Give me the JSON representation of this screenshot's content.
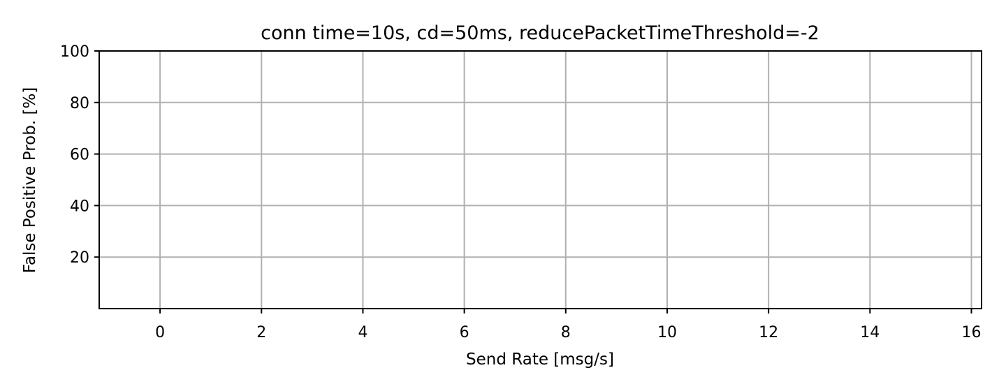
{
  "chart_data": {
    "type": "line",
    "title": "conn time=10s, cd=50ms, reducePacketTimeThreshold=-2",
    "xlabel": "Send Rate [msg/s]",
    "ylabel": "False Positive Prob. [%]",
    "xlim": [
      -1.2,
      16.2
    ],
    "ylim": [
      0,
      100
    ],
    "xticks": [
      0,
      2,
      4,
      6,
      8,
      10,
      12,
      14,
      16
    ],
    "yticks": [
      20,
      40,
      60,
      80,
      100
    ],
    "grid": true,
    "series": []
  },
  "colors": {
    "background": "#ffffff",
    "grid": "#b0b0b0",
    "axis": "#000000",
    "text": "#000000"
  }
}
